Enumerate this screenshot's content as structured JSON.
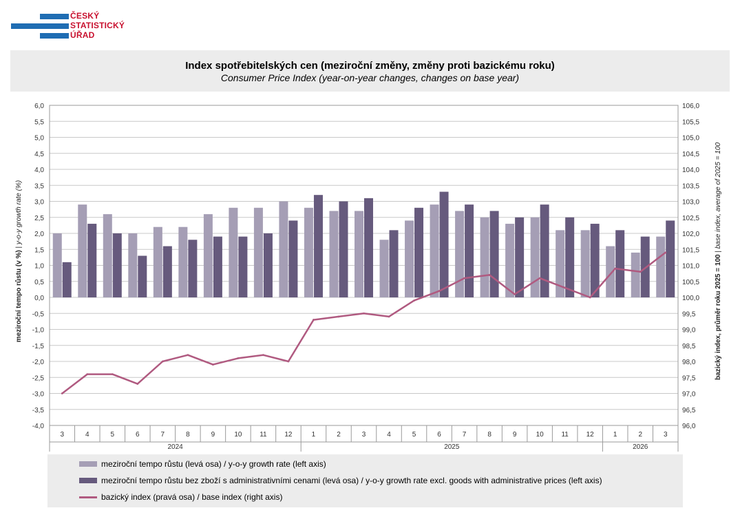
{
  "logo": {
    "lines": [
      "ČESKÝ",
      "STATISTICKÝ",
      "ÚŘAD"
    ],
    "bar_color": "#1f6db3",
    "text_color": "#c8102e"
  },
  "title": {
    "main": "Index spotřebitelských cen (meziroční změny, změny proti bazickému roku)",
    "sub": "Consumer Price Index (year-on-year changes, changes on base year)"
  },
  "axis_titles": {
    "left_bold": "meziroční tempo růstu (v %)",
    "left_italic": "y-o-y growth rate (%)",
    "right_bold": "bazický index, průměr roku 2025 = 100",
    "right_italic": "base index, average of 2025 = 100"
  },
  "chart_data": {
    "type": "bar",
    "categories": [
      "3",
      "4",
      "5",
      "6",
      "7",
      "8",
      "9",
      "10",
      "11",
      "12",
      "1",
      "2",
      "3",
      "4",
      "5",
      "6",
      "7",
      "8",
      "9",
      "10",
      "11",
      "12",
      "1",
      "2",
      "3"
    ],
    "year_groups": [
      {
        "label": "2024",
        "count": 10
      },
      {
        "label": "2025",
        "count": 12
      },
      {
        "label": "2026",
        "count": 3
      }
    ],
    "series": [
      {
        "name": "meziroční tempo růstu (levá osa) / y-o-y growth rate (left axis)",
        "kind": "bar",
        "axis": "left",
        "color": "#a59eb5",
        "values": [
          2.0,
          2.9,
          2.6,
          2.0,
          2.2,
          2.2,
          2.6,
          2.8,
          2.8,
          3.0,
          2.8,
          2.7,
          2.7,
          1.8,
          2.4,
          2.9,
          2.7,
          2.5,
          2.3,
          2.5,
          2.1,
          2.1,
          1.6,
          1.4,
          1.9
        ]
      },
      {
        "name": "meziroční tempo růstu bez zboží s administrativními cenami (levá osa) / y-o-y growth rate excl. goods with administrative prices (left axis)",
        "kind": "bar",
        "axis": "left",
        "color": "#665a7d",
        "values": [
          1.1,
          2.3,
          2.0,
          1.3,
          1.6,
          1.8,
          1.9,
          1.9,
          2.0,
          2.4,
          3.2,
          3.0,
          3.1,
          2.1,
          2.8,
          3.3,
          2.9,
          2.7,
          2.5,
          2.9,
          2.5,
          2.3,
          2.1,
          1.9,
          2.4
        ]
      },
      {
        "name": "bazický index (pravá osa) / base index (right axis)",
        "kind": "line",
        "axis": "right",
        "color": "#b05a80",
        "values": [
          97.0,
          97.6,
          97.6,
          97.3,
          98.0,
          98.2,
          97.9,
          98.1,
          98.2,
          98.0,
          99.3,
          99.4,
          99.5,
          99.4,
          99.9,
          100.2,
          100.6,
          100.7,
          100.1,
          100.6,
          100.3,
          100.0,
          100.9,
          100.8,
          101.4
        ]
      }
    ],
    "left_axis": {
      "min": -4.0,
      "max": 6.0,
      "step": 0.5
    },
    "right_axis": {
      "min": 96.0,
      "max": 106.0,
      "step": 0.5
    },
    "grid": true,
    "legend_position": "bottom"
  }
}
